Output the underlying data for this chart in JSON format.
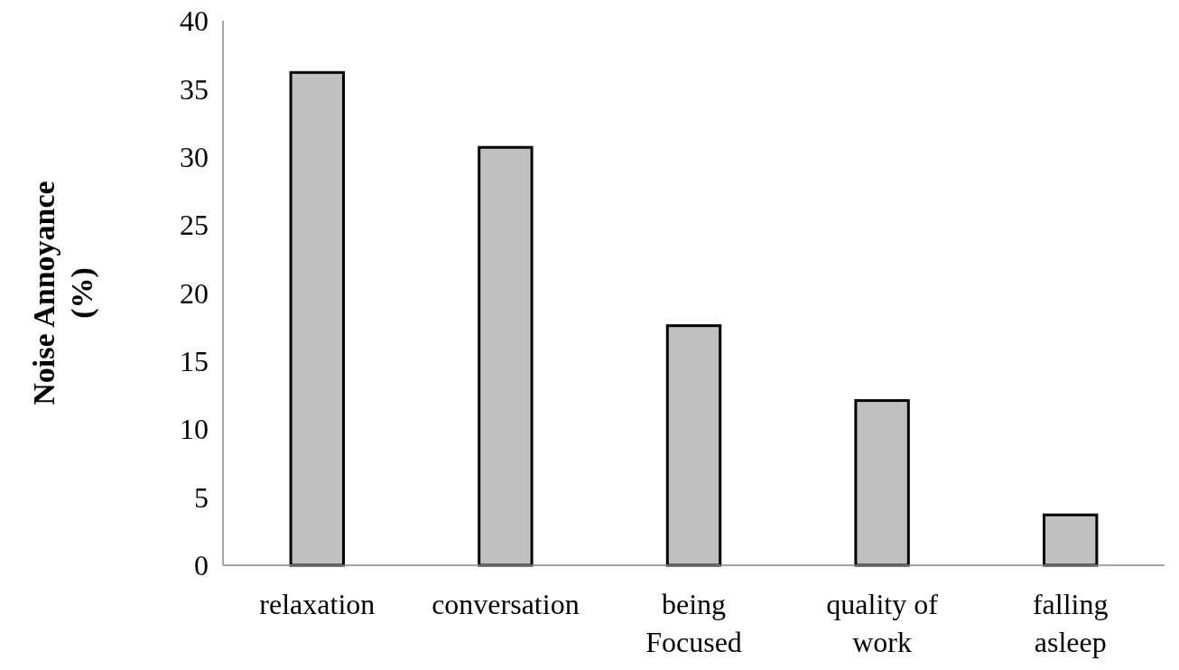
{
  "chart_data": {
    "type": "bar",
    "ylabel": "Noise Annoyance\n(%)",
    "categories": [
      "relaxation",
      "conversation",
      "being\nFocused",
      "quality of\nwork",
      "falling\nasleep"
    ],
    "values": [
      36.2,
      30.7,
      17.6,
      12.1,
      3.7
    ],
    "color": "#c0c0c0",
    "ylim": [
      0,
      40
    ],
    "yticks": [
      0,
      5,
      10,
      15,
      20,
      25,
      30,
      35,
      40
    ],
    "grid": false
  }
}
